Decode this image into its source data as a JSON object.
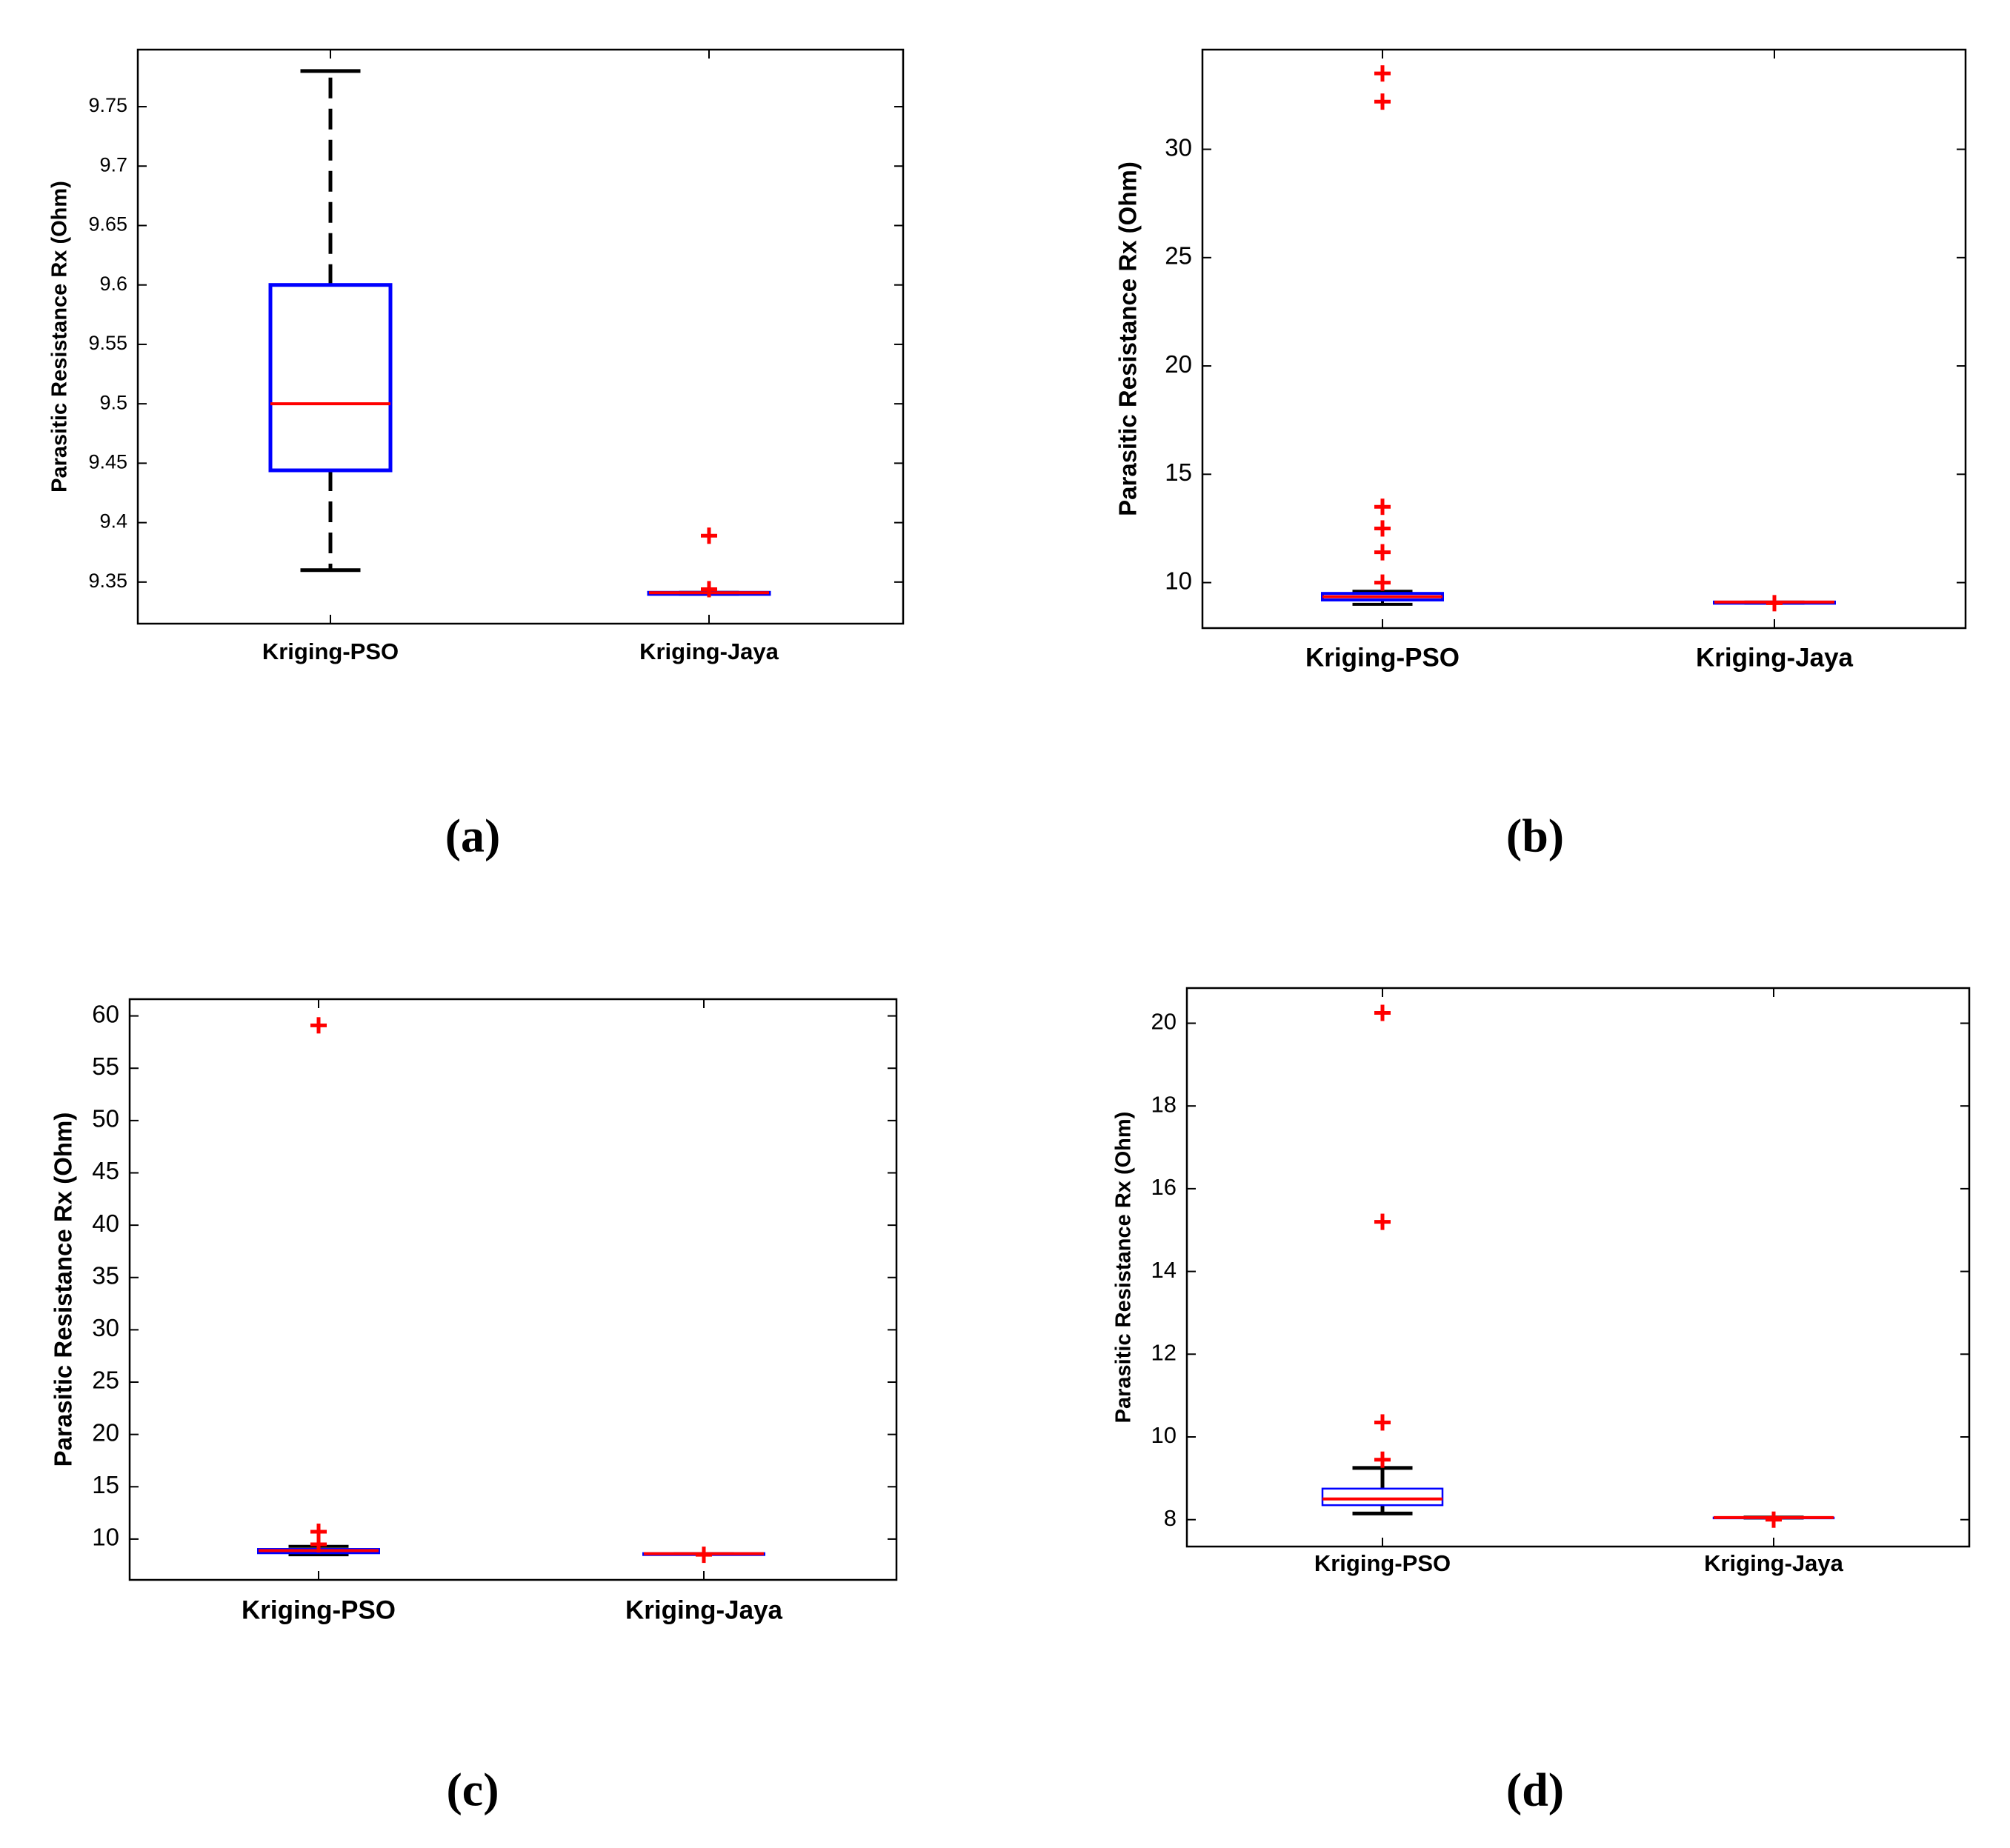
{
  "figure": {
    "panels": [
      "(a)",
      "(b)",
      "(c)",
      "(d)"
    ]
  },
  "colors": {
    "box": "#0000ff",
    "median": "#ff0000",
    "outlier": "#ff0000",
    "whisker": "#000000",
    "axis": "#000000"
  },
  "chart_data": [
    {
      "id": "a",
      "panel_label": "(a)",
      "type": "boxplot",
      "title": "",
      "xlabel": "",
      "ylabel": "Parasitic Resistance Rx (Ohm)",
      "categories": [
        "Kriging-PSO",
        "Kriging-Jaya"
      ],
      "ylim": [
        9.315,
        9.798
      ],
      "yticks": [
        9.35,
        9.4,
        9.45,
        9.5,
        9.55,
        9.6,
        9.65,
        9.7,
        9.75
      ],
      "ytick_labels": [
        "9.35",
        "9.4",
        "9.45",
        "9.5",
        "9.55",
        "9.6",
        "9.65",
        "9.7",
        "9.75"
      ],
      "grid": false,
      "boxes": [
        {
          "name": "Kriging-PSO",
          "whisker_low": 9.36,
          "q1": 9.444,
          "median": 9.5,
          "q3": 9.6,
          "whisker_high": 9.78,
          "outliers": []
        },
        {
          "name": "Kriging-Jaya",
          "whisker_low": 9.34,
          "q1": 9.34,
          "median": 9.341,
          "q3": 9.341,
          "whisker_high": 9.341,
          "outliers": [
            9.389,
            9.344
          ]
        }
      ]
    },
    {
      "id": "b",
      "panel_label": "(b)",
      "type": "boxplot",
      "title": "",
      "xlabel": "",
      "ylabel": "Parasitic Resistance Rx (Ohm)",
      "categories": [
        "Kriging-PSO",
        "Kriging-Jaya"
      ],
      "ylim": [
        7.9,
        34.6
      ],
      "yticks": [
        10,
        15,
        20,
        25,
        30
      ],
      "ytick_labels": [
        "10",
        "15",
        "20",
        "25",
        "30"
      ],
      "grid": false,
      "boxes": [
        {
          "name": "Kriging-PSO",
          "whisker_low": 9.0,
          "q1": 9.2,
          "median": 9.35,
          "q3": 9.5,
          "whisker_high": 9.6,
          "outliers": [
            33.5,
            32.2,
            13.5,
            12.5,
            11.4,
            10.0
          ]
        },
        {
          "name": "Kriging-Jaya",
          "whisker_low": 9.05,
          "q1": 9.05,
          "median": 9.1,
          "q3": 9.1,
          "whisker_high": 9.1,
          "outliers": [
            9.05
          ]
        }
      ]
    },
    {
      "id": "c",
      "panel_label": "(c)",
      "type": "boxplot",
      "title": "",
      "xlabel": "",
      "ylabel": "Parasitic Resistance Rx (Ohm)",
      "categories": [
        "Kriging-PSO",
        "Kriging-Jaya"
      ],
      "ylim": [
        6.1,
        61.6
      ],
      "yticks": [
        10,
        15,
        20,
        25,
        30,
        35,
        40,
        45,
        50,
        55,
        60
      ],
      "ytick_labels": [
        "10",
        "15",
        "20",
        "25",
        "30",
        "35",
        "40",
        "45",
        "50",
        "55",
        "60"
      ],
      "grid": false,
      "boxes": [
        {
          "name": "Kriging-PSO",
          "whisker_low": 8.5,
          "q1": 8.7,
          "median": 8.9,
          "q3": 9.0,
          "whisker_high": 9.3,
          "outliers": [
            59.1,
            10.7,
            9.5
          ]
        },
        {
          "name": "Kriging-Jaya",
          "whisker_low": 8.6,
          "q1": 8.6,
          "median": 8.6,
          "q3": 8.6,
          "whisker_high": 8.6,
          "outliers": [
            8.5
          ]
        }
      ]
    },
    {
      "id": "d",
      "panel_label": "(d)",
      "type": "boxplot",
      "title": "",
      "xlabel": "",
      "ylabel": "Parasitic Resistance Rx (Ohm)",
      "categories": [
        "Kriging-PSO",
        "Kriging-Jaya"
      ],
      "ylim": [
        7.35,
        20.85
      ],
      "yticks": [
        8,
        10,
        12,
        14,
        16,
        18,
        20
      ],
      "ytick_labels": [
        "8",
        "10",
        "12",
        "14",
        "16",
        "18",
        "20"
      ],
      "grid": false,
      "boxes": [
        {
          "name": "Kriging-PSO",
          "whisker_low": 8.15,
          "q1": 8.35,
          "median": 8.5,
          "q3": 8.75,
          "whisker_high": 9.25,
          "outliers": [
            20.25,
            15.2,
            10.35,
            9.45
          ]
        },
        {
          "name": "Kriging-Jaya",
          "whisker_low": 8.05,
          "q1": 8.05,
          "median": 8.05,
          "q3": 8.05,
          "whisker_high": 8.05,
          "outliers": [
            8.0
          ]
        }
      ]
    }
  ]
}
